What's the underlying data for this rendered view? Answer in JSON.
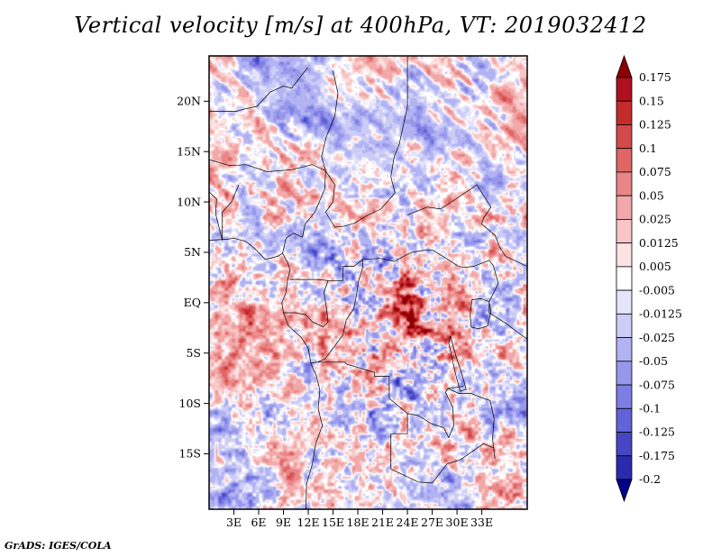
{
  "title": "Vertical velocity [m/s] at 400hPa, VT: 2019032412",
  "footer": "GrADS: IGES/COLA",
  "chart_data": {
    "type": "heatmap",
    "title": "Vertical velocity [m/s] at 400hPa, VT: 2019032412",
    "variable": "Vertical velocity",
    "units": "m/s",
    "level": "400hPa",
    "valid_time": "2019032412",
    "renderer": "GrADS: IGES/COLA",
    "x_ticks": [
      "3E",
      "6E",
      "9E",
      "12E",
      "15E",
      "18E",
      "21E",
      "24E",
      "27E",
      "30E",
      "33E"
    ],
    "x_tick_values": [
      3,
      6,
      9,
      12,
      15,
      18,
      21,
      24,
      27,
      30,
      33
    ],
    "y_ticks": [
      "20N",
      "15N",
      "10N",
      "5N",
      "EQ",
      "5S",
      "10S",
      "15S"
    ],
    "y_tick_values": [
      20,
      15,
      10,
      5,
      0,
      -5,
      -10,
      -15
    ],
    "lon_range": [
      0,
      38.5
    ],
    "lat_range": [
      -20.5,
      24.5
    ],
    "grid": false,
    "legend_position": "right",
    "colorbar": {
      "labels": [
        "0.175",
        "0.15",
        "0.125",
        "0.1",
        "0.075",
        "0.05",
        "0.025",
        "0.0125",
        "0.005",
        "-0.005",
        "-0.0125",
        "-0.025",
        "-0.05",
        "-0.075",
        "-0.1",
        "-0.125",
        "-0.175",
        "-0.2"
      ],
      "levels": [
        0.175,
        0.15,
        0.125,
        0.1,
        0.075,
        0.05,
        0.025,
        0.0125,
        0.005,
        -0.005,
        -0.0125,
        -0.025,
        -0.05,
        -0.075,
        -0.1,
        -0.125,
        -0.175,
        -0.2
      ],
      "colors": [
        "#8b0000",
        "#b01020",
        "#c42c2c",
        "#d44a4a",
        "#e06666",
        "#ea8686",
        "#f2a8a8",
        "#f8c6c6",
        "#fde2e2",
        "#ffffff",
        "#e4e4fb",
        "#cccdf7",
        "#b2b3f2",
        "#9798ec",
        "#7d7ee4",
        "#6263d8",
        "#4646c4",
        "#2a2aae",
        "#00008b"
      ]
    },
    "field_summary": "Fine-grained speckled field of updrafts (red) and downdrafts (blue) over central Africa; strongest mixed red speckle over the Congo basin (18E-30E, 5N-10S), elongated diagonal red/blue streaks north of 8N, pale blue/white filaments over the southeast Atlantic.",
    "map_borders": [
      [
        [
          0,
          6.2
        ],
        [
          2.2,
          6.3
        ],
        [
          3.0,
          6.4
        ],
        [
          4.4,
          6.1
        ],
        [
          5.5,
          5.4
        ],
        [
          6.8,
          4.3
        ],
        [
          8.3,
          4.6
        ],
        [
          8.9,
          4.9
        ],
        [
          9.5,
          4.0
        ],
        [
          9.8,
          3.2
        ],
        [
          9.5,
          2.3
        ],
        [
          9.3,
          1.0
        ],
        [
          8.8,
          0.0
        ],
        [
          9.0,
          -1.0
        ],
        [
          9.6,
          -2.3
        ],
        [
          11.1,
          -3.4
        ],
        [
          12.0,
          -4.5
        ],
        [
          12.3,
          -6.0
        ],
        [
          13.0,
          -7.3
        ],
        [
          13.4,
          -8.7
        ],
        [
          13.2,
          -10.5
        ],
        [
          13.7,
          -12.2
        ],
        [
          12.9,
          -14.0
        ],
        [
          12.5,
          -16.0
        ],
        [
          11.8,
          -18.0
        ],
        [
          11.7,
          -20.5
        ]
      ],
      [
        [
          0,
          14.2
        ],
        [
          2.5,
          13.6
        ],
        [
          4.5,
          13.7
        ],
        [
          7.0,
          13.0
        ],
        [
          10.0,
          13.2
        ],
        [
          12.5,
          13.7
        ],
        [
          14.1,
          13.1
        ]
      ],
      [
        [
          8.9,
          4.9
        ],
        [
          9.3,
          6.4
        ],
        [
          10.2,
          6.9
        ],
        [
          11.3,
          6.5
        ],
        [
          11.6,
          7.8
        ],
        [
          12.8,
          9.0
        ],
        [
          14.0,
          11.3
        ],
        [
          14.1,
          13.1
        ]
      ],
      [
        [
          14.1,
          13.1
        ],
        [
          15.2,
          11.7
        ],
        [
          15.0,
          10.0
        ],
        [
          14.1,
          9.0
        ],
        [
          15.2,
          7.5
        ],
        [
          16.4,
          7.6
        ],
        [
          17.6,
          7.9
        ],
        [
          19.0,
          8.6
        ],
        [
          20.8,
          9.3
        ],
        [
          22.5,
          10.9
        ]
      ],
      [
        [
          22.5,
          10.9
        ],
        [
          22.0,
          12.5
        ],
        [
          22.4,
          14.5
        ],
        [
          23.0,
          15.7
        ],
        [
          24.0,
          19.5
        ],
        [
          24.0,
          24.5
        ]
      ],
      [
        [
          14.1,
          13.1
        ],
        [
          13.6,
          14.5
        ],
        [
          14.2,
          16.5
        ],
        [
          15.2,
          18.5
        ],
        [
          15.6,
          20.8
        ],
        [
          15.0,
          23.0
        ]
      ],
      [
        [
          0,
          19.0
        ],
        [
          3.3,
          19.0
        ],
        [
          4.2,
          19.2
        ],
        [
          5.8,
          19.5
        ],
        [
          7.4,
          20.9
        ],
        [
          9.0,
          21.5
        ],
        [
          10.0,
          21.3
        ],
        [
          11.9,
          23.3
        ]
      ],
      [
        [
          16.2,
          3.6
        ],
        [
          17.5,
          3.6
        ],
        [
          18.6,
          4.3
        ],
        [
          20.7,
          4.4
        ],
        [
          22.4,
          4.1
        ],
        [
          24.5,
          5.0
        ],
        [
          26.0,
          5.2
        ],
        [
          27.1,
          5.2
        ],
        [
          28.7,
          4.4
        ],
        [
          30.2,
          3.6
        ],
        [
          30.8,
          3.5
        ]
      ],
      [
        [
          9.8,
          2.3
        ],
        [
          11.3,
          2.3
        ],
        [
          13.2,
          2.3
        ],
        [
          14.4,
          2.2
        ],
        [
          16.2,
          2.2
        ],
        [
          16.2,
          3.6
        ]
      ],
      [
        [
          9.0,
          -1.0
        ],
        [
          10.5,
          -1.0
        ],
        [
          11.7,
          -1.2
        ],
        [
          12.5,
          -1.9
        ],
        [
          13.8,
          -2.4
        ],
        [
          14.4,
          -1.9
        ],
        [
          14.2,
          -0.5
        ],
        [
          13.9,
          1.0
        ],
        [
          14.4,
          2.2
        ]
      ],
      [
        [
          12.3,
          -6.0
        ],
        [
          13.1,
          -5.9
        ],
        [
          14.0,
          -5.6
        ],
        [
          15.2,
          -4.3
        ],
        [
          16.2,
          -3.2
        ],
        [
          16.6,
          -1.7
        ],
        [
          17.5,
          -0.6
        ],
        [
          17.8,
          0.6
        ],
        [
          18.1,
          2.2
        ],
        [
          18.6,
          3.5
        ],
        [
          18.6,
          4.3
        ]
      ],
      [
        [
          13.1,
          -5.9
        ],
        [
          16.4,
          -5.9
        ],
        [
          16.6,
          -6.1
        ],
        [
          20.0,
          -6.9
        ],
        [
          20.0,
          -7.3
        ],
        [
          21.8,
          -7.3
        ],
        [
          21.8,
          -9.5
        ],
        [
          24.0,
          -11.0
        ],
        [
          24.0,
          -13.0
        ],
        [
          22.0,
          -13.0
        ],
        [
          22.0,
          -16.5
        ]
      ],
      [
        [
          24.0,
          -11.0
        ],
        [
          25.3,
          -11.2
        ],
        [
          26.9,
          -12.0
        ],
        [
          28.4,
          -12.4
        ],
        [
          29.0,
          -13.4
        ],
        [
          29.6,
          -12.2
        ],
        [
          29.5,
          -10.4
        ],
        [
          28.6,
          -8.9
        ],
        [
          28.9,
          -8.5
        ],
        [
          30.8,
          -8.3
        ]
      ],
      [
        [
          24.0,
          8.7
        ],
        [
          26.4,
          9.5
        ],
        [
          28.0,
          9.3
        ],
        [
          29.5,
          10.1
        ],
        [
          32.4,
          11.7
        ],
        [
          34.1,
          9.5
        ],
        [
          33.2,
          8.4
        ],
        [
          33.0,
          7.8
        ],
        [
          34.6,
          6.7
        ],
        [
          35.3,
          5.3
        ],
        [
          35.9,
          4.6
        ]
      ],
      [
        [
          30.8,
          3.5
        ],
        [
          32.0,
          3.6
        ],
        [
          33.9,
          4.2
        ],
        [
          34.4,
          3.7
        ],
        [
          35.0,
          1.9
        ],
        [
          33.9,
          0.1
        ],
        [
          33.9,
          -1.0
        ],
        [
          36.0,
          -2.1
        ],
        [
          37.6,
          -3.1
        ],
        [
          38.5,
          -3.6
        ]
      ],
      [
        [
          35.9,
          4.6
        ],
        [
          38.5,
          3.6
        ]
      ],
      [
        [
          29.2,
          -3.3
        ],
        [
          29.6,
          -4.5
        ],
        [
          30.1,
          -5.9
        ],
        [
          30.5,
          -6.8
        ],
        [
          31.1,
          -8.6
        ],
        [
          30.4,
          -8.8
        ],
        [
          29.8,
          -7.0
        ],
        [
          29.4,
          -5.5
        ],
        [
          29.0,
          -4.0
        ],
        [
          29.2,
          -3.3
        ]
      ],
      [
        [
          31.8,
          0.3
        ],
        [
          32.9,
          0.4
        ],
        [
          33.9,
          0.1
        ],
        [
          34.1,
          -0.9
        ],
        [
          33.7,
          -2.3
        ],
        [
          32.6,
          -2.6
        ],
        [
          31.7,
          -2.4
        ],
        [
          31.6,
          -1.2
        ],
        [
          31.8,
          0.3
        ]
      ],
      [
        [
          22.0,
          -16.5
        ],
        [
          25.3,
          -17.8
        ],
        [
          27.0,
          -17.9
        ],
        [
          28.8,
          -16.0
        ],
        [
          30.4,
          -15.6
        ],
        [
          33.2,
          -14.0
        ],
        [
          34.4,
          -14.4
        ]
      ],
      [
        [
          33.2,
          -9.5
        ],
        [
          34.0,
          -9.7
        ],
        [
          34.5,
          -11.5
        ],
        [
          34.3,
          -13.5
        ],
        [
          34.6,
          -15.5
        ]
      ],
      [
        [
          0,
          11.0
        ],
        [
          0.9,
          10.3
        ],
        [
          0.8,
          8.8
        ],
        [
          1.6,
          6.2
        ]
      ],
      [
        [
          1.6,
          6.2
        ],
        [
          1.6,
          9.0
        ],
        [
          2.7,
          10.0
        ],
        [
          3.6,
          11.7
        ]
      ],
      [
        [
          28.9,
          -8.5
        ],
        [
          30.2,
          -9.0
        ],
        [
          31.7,
          -9.0
        ],
        [
          33.2,
          -9.5
        ]
      ]
    ]
  }
}
